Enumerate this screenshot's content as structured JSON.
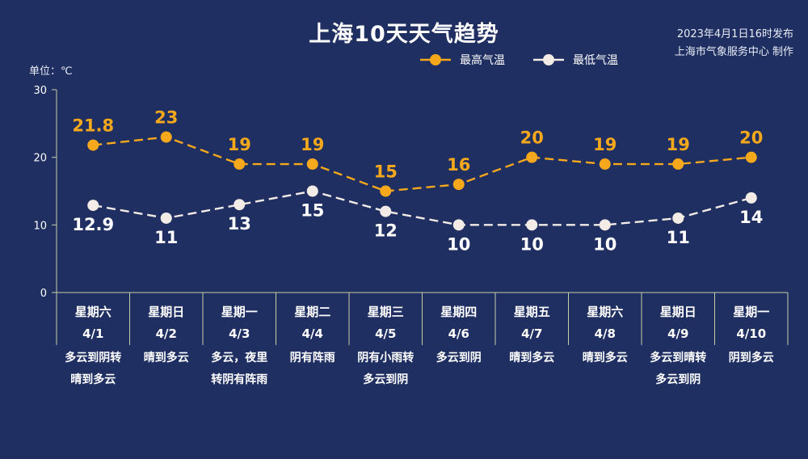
{
  "title": "上海10天天气趋势",
  "publish": {
    "time": "2023年4月1日16时发布",
    "org": "上海市气象服务中心 制作"
  },
  "unit_label": "单位：℃",
  "colors": {
    "background": "#1f2f62",
    "high": "#f5a81c",
    "low": "#f2ebe6",
    "axis": "#c9cfa8"
  },
  "chart_data": {
    "type": "line",
    "title": "上海10天天气趋势",
    "ylabel": "单位：℃",
    "ylim": [
      0,
      30
    ],
    "yticks": [
      0,
      10,
      20,
      30
    ],
    "grid": false,
    "legend_position": "top-right",
    "x": [
      "4/1",
      "4/2",
      "4/3",
      "4/4",
      "4/5",
      "4/6",
      "4/7",
      "4/8",
      "4/9",
      "4/10"
    ],
    "series": [
      {
        "name": "最高气温",
        "values": [
          21.8,
          23,
          19,
          19,
          15,
          16,
          20,
          19,
          19,
          20
        ],
        "labels": [
          "21.8",
          "23",
          "19",
          "19",
          "15",
          "16",
          "20",
          "19",
          "19",
          "20"
        ]
      },
      {
        "name": "最低气温",
        "values": [
          12.9,
          11,
          13,
          15,
          12,
          10,
          10,
          10,
          11,
          14
        ],
        "labels": [
          "12.9",
          "11",
          "13",
          "15",
          "12",
          "10",
          "10",
          "10",
          "11",
          "14"
        ]
      }
    ]
  },
  "days": [
    {
      "weekday": "星期六",
      "date": "4/1",
      "desc": [
        "多云到阴转",
        "晴到多云"
      ]
    },
    {
      "weekday": "星期日",
      "date": "4/2",
      "desc": [
        "晴到多云"
      ]
    },
    {
      "weekday": "星期一",
      "date": "4/3",
      "desc": [
        "多云，夜里",
        "转阴有阵雨"
      ]
    },
    {
      "weekday": "星期二",
      "date": "4/4",
      "desc": [
        "阴有阵雨"
      ]
    },
    {
      "weekday": "星期三",
      "date": "4/5",
      "desc": [
        "阴有小雨转",
        "多云到阴"
      ]
    },
    {
      "weekday": "星期四",
      "date": "4/6",
      "desc": [
        "多云到阴"
      ]
    },
    {
      "weekday": "星期五",
      "date": "4/7",
      "desc": [
        "晴到多云"
      ]
    },
    {
      "weekday": "星期六",
      "date": "4/8",
      "desc": [
        "晴到多云"
      ]
    },
    {
      "weekday": "星期日",
      "date": "4/9",
      "desc": [
        "多云到晴转",
        "多云到阴"
      ]
    },
    {
      "weekday": "星期一",
      "date": "4/10",
      "desc": [
        "阴到多云"
      ]
    }
  ]
}
